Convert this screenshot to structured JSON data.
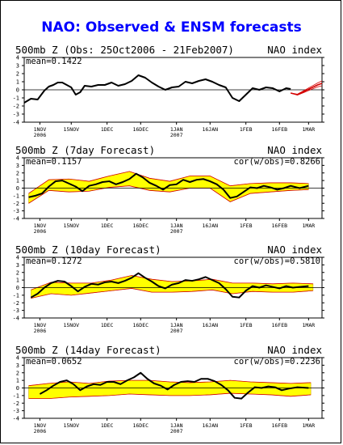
{
  "title": "NAO: Observed & ENSM forecasts",
  "colors": {
    "observed": "#000000",
    "ensemble_members": "#d40000",
    "spread": "#ffff00",
    "spread_edge": "#d4aa00",
    "title": "#0000ff"
  },
  "x_axis": {
    "ticks": [
      {
        "date": "2006-11-01",
        "label": "1NOV",
        "sub": "2006"
      },
      {
        "date": "2006-11-15",
        "label": "15NOV",
        "sub": ""
      },
      {
        "date": "2006-12-01",
        "label": "1DEC",
        "sub": ""
      },
      {
        "date": "2006-12-16",
        "label": "16DEC",
        "sub": ""
      },
      {
        "date": "2007-01-01",
        "label": "1JAN",
        "sub": "2007"
      },
      {
        "date": "2007-01-16",
        "label": "16JAN",
        "sub": ""
      },
      {
        "date": "2007-02-01",
        "label": "1FEB",
        "sub": ""
      },
      {
        "date": "2007-02-16",
        "label": "16FEB",
        "sub": ""
      },
      {
        "date": "2007-03-01",
        "label": "1MAR",
        "sub": ""
      }
    ],
    "range": [
      "2006-10-25",
      "2007-03-07"
    ]
  },
  "y_axis": {
    "ticks": [
      4,
      3,
      2,
      1,
      0,
      -1,
      -2,
      -3,
      -4
    ],
    "range": [
      -4,
      4
    ]
  },
  "chart_data": [
    {
      "type": "line",
      "panel_title": "500mb Z (Obs: 25Oct2006 - 21Feb2007)",
      "panel_label": "NAO index",
      "stat_left": "mean=0.1422",
      "stat_right": "",
      "series": [
        {
          "role": "observed",
          "x": [
            "2006-10-25",
            "2006-10-28",
            "2006-10-31",
            "2006-11-03",
            "2006-11-05",
            "2006-11-07",
            "2006-11-09",
            "2006-11-11",
            "2006-11-13",
            "2006-11-15",
            "2006-11-17",
            "2006-11-19",
            "2006-11-21",
            "2006-11-24",
            "2006-11-27",
            "2006-11-30",
            "2006-12-03",
            "2006-12-06",
            "2006-12-09",
            "2006-12-12",
            "2006-12-15",
            "2006-12-18",
            "2006-12-21",
            "2006-12-24",
            "2006-12-27",
            "2006-12-30",
            "2007-01-02",
            "2007-01-05",
            "2007-01-08",
            "2007-01-11",
            "2007-01-14",
            "2007-01-17",
            "2007-01-20",
            "2007-01-23",
            "2007-01-26",
            "2007-01-29",
            "2007-02-01",
            "2007-02-04",
            "2007-02-07",
            "2007-02-10",
            "2007-02-13",
            "2007-02-16",
            "2007-02-19",
            "2007-02-21"
          ],
          "y": [
            -1.6,
            -1.1,
            -1.2,
            -0.1,
            0.4,
            0.6,
            0.9,
            0.9,
            0.6,
            0.3,
            -0.6,
            -0.3,
            0.5,
            0.4,
            0.6,
            0.6,
            0.9,
            0.5,
            0.7,
            1.1,
            1.8,
            1.5,
            0.9,
            0.4,
            0.0,
            0.3,
            0.4,
            1.0,
            0.8,
            1.1,
            1.3,
            1.0,
            0.6,
            0.3,
            -1.0,
            -1.4,
            -0.6,
            0.2,
            0.0,
            0.3,
            0.2,
            -0.2,
            0.2,
            0.1
          ]
        },
        {
          "role": "forecast",
          "x": [
            "2007-02-21",
            "2007-02-24",
            "2007-02-27",
            "2007-03-02",
            "2007-03-05",
            "2007-03-07"
          ],
          "y": [
            -0.4,
            -0.6,
            -0.2,
            0.2,
            0.6,
            0.8
          ]
        }
      ],
      "spread": []
    },
    {
      "type": "line",
      "panel_title": "500mb Z (7day Forecast)",
      "panel_label": "NAO index",
      "stat_left": "mean=0.1157",
      "stat_right": "cor(w/obs)=0.8266",
      "series": [
        {
          "role": "observed",
          "x": [
            "2006-10-27",
            "2006-10-30",
            "2006-11-02",
            "2006-11-05",
            "2006-11-08",
            "2006-11-11",
            "2006-11-14",
            "2006-11-17",
            "2006-11-20",
            "2006-11-23",
            "2006-11-26",
            "2006-11-29",
            "2006-12-02",
            "2006-12-05",
            "2006-12-08",
            "2006-12-11",
            "2006-12-14",
            "2006-12-17",
            "2006-12-20",
            "2006-12-23",
            "2006-12-26",
            "2006-12-29",
            "2007-01-01",
            "2007-01-04",
            "2007-01-07",
            "2007-01-10",
            "2007-01-13",
            "2007-01-16",
            "2007-01-19",
            "2007-01-22",
            "2007-01-25",
            "2007-01-28",
            "2007-01-31",
            "2007-02-03",
            "2007-02-06",
            "2007-02-09",
            "2007-02-12",
            "2007-02-15",
            "2007-02-18",
            "2007-02-21",
            "2007-02-25",
            "2007-03-01"
          ],
          "y": [
            -1.2,
            -1.0,
            -0.7,
            0.2,
            0.9,
            1.0,
            0.6,
            0.2,
            -0.4,
            0.3,
            0.5,
            0.8,
            0.9,
            0.5,
            0.8,
            1.2,
            1.9,
            1.4,
            0.7,
            0.3,
            -0.2,
            0.4,
            0.5,
            1.1,
            0.8,
            1.1,
            1.2,
            0.9,
            0.5,
            -0.2,
            -1.3,
            -1.1,
            -0.5,
            0.1,
            0.0,
            0.3,
            0.1,
            -0.2,
            0.0,
            0.3,
            0.0,
            0.3
          ]
        }
      ],
      "spread": [
        {
          "x": [
            "2006-10-27",
            "2006-11-05",
            "2006-11-14",
            "2006-11-23",
            "2006-12-02",
            "2006-12-11",
            "2006-12-20",
            "2006-12-29",
            "2007-01-07",
            "2007-01-16",
            "2007-01-25",
            "2007-02-03",
            "2007-02-12",
            "2007-02-21",
            "2007-03-01"
          ],
          "lower": [
            -2.0,
            -0.3,
            -0.5,
            -0.4,
            0.1,
            0.3,
            -0.3,
            -0.5,
            0.0,
            0.0,
            -1.8,
            -0.7,
            -0.5,
            -0.3,
            -0.2
          ],
          "upper": [
            -0.7,
            1.1,
            1.2,
            0.9,
            1.6,
            2.2,
            1.3,
            0.9,
            1.6,
            1.6,
            0.3,
            0.6,
            0.7,
            0.7,
            0.6
          ]
        }
      ]
    },
    {
      "type": "line",
      "panel_title": "500mb Z (10day Forecast)",
      "panel_label": "NAO index",
      "stat_left": "mean=0.1272",
      "stat_right": "cor(w/obs)=0.5810",
      "series": [
        {
          "role": "observed",
          "x": [
            "2006-10-28",
            "2006-10-31",
            "2006-11-03",
            "2006-11-06",
            "2006-11-09",
            "2006-11-12",
            "2006-11-15",
            "2006-11-18",
            "2006-11-21",
            "2006-11-24",
            "2006-11-27",
            "2006-11-30",
            "2006-12-03",
            "2006-12-06",
            "2006-12-09",
            "2006-12-12",
            "2006-12-15",
            "2006-12-18",
            "2006-12-21",
            "2006-12-24",
            "2006-12-27",
            "2006-12-30",
            "2007-01-02",
            "2007-01-05",
            "2007-01-08",
            "2007-01-11",
            "2007-01-14",
            "2007-01-17",
            "2007-01-20",
            "2007-01-23",
            "2007-01-26",
            "2007-01-29",
            "2007-02-01",
            "2007-02-04",
            "2007-02-07",
            "2007-02-10",
            "2007-02-13",
            "2007-02-16",
            "2007-02-19",
            "2007-02-22",
            "2007-02-25",
            "2007-03-01"
          ],
          "y": [
            -1.3,
            -0.8,
            0.0,
            0.6,
            0.9,
            0.8,
            0.2,
            -0.5,
            0.1,
            0.5,
            0.4,
            0.7,
            0.8,
            0.6,
            0.9,
            1.3,
            1.9,
            1.3,
            0.8,
            0.2,
            -0.1,
            0.4,
            0.6,
            1.0,
            0.9,
            1.1,
            1.4,
            1.0,
            0.6,
            -0.2,
            -1.2,
            -1.3,
            -0.4,
            0.2,
            0.0,
            0.3,
            0.1,
            -0.1,
            0.2,
            0.0,
            0.1,
            0.2
          ]
        }
      ],
      "spread": [
        {
          "x": [
            "2006-10-28",
            "2006-11-06",
            "2006-11-15",
            "2006-11-24",
            "2006-12-03",
            "2006-12-12",
            "2006-12-21",
            "2006-12-30",
            "2007-01-08",
            "2007-01-17",
            "2007-01-26",
            "2007-02-04",
            "2007-02-13",
            "2007-02-22",
            "2007-03-03"
          ],
          "lower": [
            -1.4,
            -0.8,
            -1.0,
            -0.7,
            -0.4,
            -0.1,
            -0.6,
            -0.6,
            -0.5,
            -0.3,
            -0.8,
            -0.5,
            -0.6,
            -0.6,
            -0.4
          ],
          "upper": [
            -0.3,
            0.7,
            0.6,
            0.6,
            1.0,
            1.6,
            1.1,
            0.8,
            0.9,
            1.1,
            0.6,
            0.6,
            0.5,
            0.6,
            0.5
          ]
        }
      ]
    },
    {
      "type": "line",
      "panel_title": "500mb Z (14day Forecast)",
      "panel_label": "NAO index",
      "stat_left": "mean=0.0652",
      "stat_right": "cor(w/obs)=0.2236",
      "series": [
        {
          "role": "observed",
          "x": [
            "2006-11-01",
            "2006-11-04",
            "2006-11-07",
            "2006-11-10",
            "2006-11-13",
            "2006-11-16",
            "2006-11-19",
            "2006-11-22",
            "2006-11-25",
            "2006-11-28",
            "2006-12-01",
            "2006-12-04",
            "2006-12-07",
            "2006-12-10",
            "2006-12-13",
            "2006-12-16",
            "2006-12-19",
            "2006-12-22",
            "2006-12-25",
            "2006-12-28",
            "2006-12-31",
            "2007-01-03",
            "2007-01-06",
            "2007-01-09",
            "2007-01-12",
            "2007-01-15",
            "2007-01-18",
            "2007-01-21",
            "2007-01-24",
            "2007-01-27",
            "2007-01-30",
            "2007-02-02",
            "2007-02-05",
            "2007-02-08",
            "2007-02-11",
            "2007-02-14",
            "2007-02-17",
            "2007-02-20",
            "2007-02-24",
            "2007-03-01"
          ],
          "y": [
            -0.8,
            -0.3,
            0.3,
            0.8,
            1.0,
            0.5,
            -0.3,
            0.2,
            0.5,
            0.4,
            0.8,
            0.8,
            0.5,
            1.0,
            1.4,
            2.0,
            1.2,
            0.6,
            0.3,
            -0.2,
            0.4,
            0.8,
            0.9,
            0.8,
            1.2,
            1.2,
            0.9,
            0.4,
            -0.3,
            -1.3,
            -1.4,
            -0.6,
            0.1,
            0.0,
            0.2,
            0.1,
            -0.3,
            -0.1,
            0.1,
            0.0
          ]
        }
      ],
      "spread": [
        {
          "x": [
            "2006-10-27",
            "2006-11-05",
            "2006-11-14",
            "2006-11-23",
            "2006-12-02",
            "2006-12-11",
            "2006-12-20",
            "2006-12-29",
            "2007-01-07",
            "2007-01-16",
            "2007-01-25",
            "2007-02-03",
            "2007-02-12",
            "2007-02-21",
            "2007-03-02"
          ],
          "lower": [
            -1.4,
            -1.4,
            -1.2,
            -1.1,
            -1.0,
            -0.8,
            -0.9,
            -1.0,
            -1.0,
            -0.9,
            -0.7,
            -0.8,
            -0.9,
            -1.1,
            -0.9
          ],
          "upper": [
            0.3,
            0.6,
            0.8,
            0.6,
            0.9,
            1.0,
            1.0,
            0.8,
            0.7,
            0.8,
            1.0,
            0.8,
            0.7,
            0.6,
            0.7
          ]
        }
      ]
    }
  ]
}
